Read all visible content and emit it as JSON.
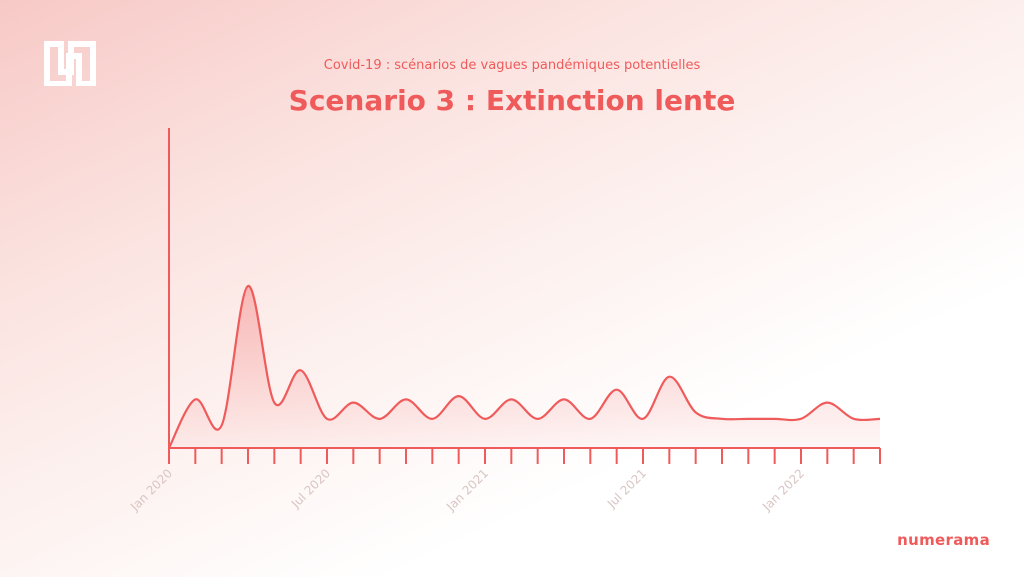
{
  "header": {
    "subtitle": "Covid-19 : scénarios de vagues pandémiques potentielles",
    "title": "Scenario 3 : Extinction lente"
  },
  "brand": {
    "name": "numerama",
    "logo_icon": "numerama-logo-icon"
  },
  "colors": {
    "accent": "#ef5b5b",
    "tick_label": "#d9c5c3"
  },
  "chart_data": {
    "type": "area",
    "title": "Scenario 3 : Extinction lente",
    "xlabel": "",
    "ylabel": "",
    "y_ticks_shown": false,
    "grid": false,
    "x_tick_labels": [
      "Jan 2020",
      "Jul 2020",
      "Jan 2021",
      "Jul 2021",
      "Jan 2022"
    ],
    "x_range": [
      "2020-01",
      "2022-04"
    ],
    "series": [
      {
        "values_note": "relative intensity, unlabeled axis",
        "x": [
          "2020-01",
          "2020-02",
          "2020-03",
          "2020-04",
          "2020-05",
          "2020-06",
          "2020-07",
          "2020-08",
          "2020-09",
          "2020-10",
          "2020-11",
          "2020-12",
          "2021-01",
          "2021-02",
          "2021-03",
          "2021-04",
          "2021-05",
          "2021-06",
          "2021-07",
          "2021-08",
          "2021-09",
          "2021-10",
          "2021-11",
          "2021-12",
          "2022-01",
          "2022-02",
          "2022-03",
          "2022-04"
        ],
        "y": [
          0,
          15,
          7,
          50,
          14,
          24,
          9,
          14,
          9,
          15,
          9,
          16,
          9,
          15,
          9,
          15,
          9,
          18,
          9,
          22,
          11,
          9,
          9,
          9,
          9,
          14,
          9,
          9
        ]
      }
    ]
  }
}
